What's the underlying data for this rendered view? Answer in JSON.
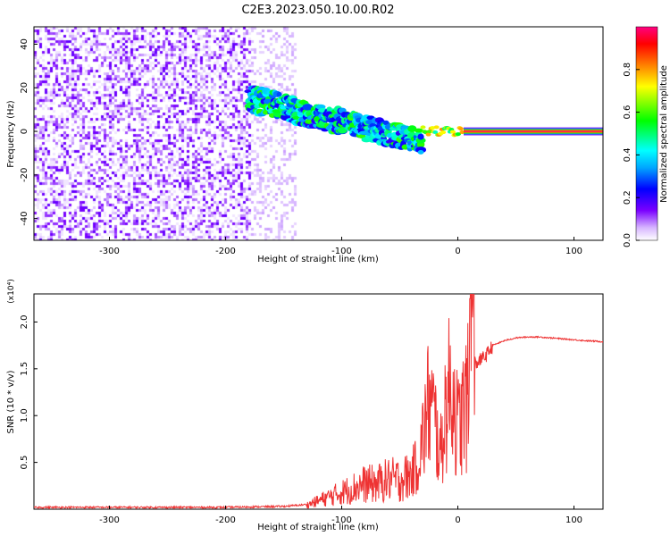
{
  "title": "C2E3.2023.050.10.00.R02",
  "chart_data": [
    {
      "type": "heatmap",
      "title": "C2E3.2023.050.10.00.R02",
      "xlabel": "Height of straight line (km)",
      "ylabel": "Frequency (Hz)",
      "xlim": [
        -365,
        125
      ],
      "ylim": [
        -50,
        48
      ],
      "xticks": [
        -300,
        -200,
        -100,
        0,
        100
      ],
      "yticks": [
        -40,
        -20,
        0,
        20,
        40
      ],
      "colorbar": {
        "label": "Normalized spectral amplitude",
        "range": [
          0,
          1
        ],
        "ticks": [
          0.0,
          0.2,
          0.4,
          0.6,
          0.8
        ],
        "colors": [
          "#ffffff",
          "#d6b4ff",
          "#7a00ff",
          "#0000ff",
          "#00a6ff",
          "#00ffff",
          "#00ff00",
          "#ffff00",
          "#ff8000",
          "#ff0000",
          "#ff0080"
        ]
      },
      "regions": [
        {
          "x": [
            -365,
            -180
          ],
          "freq": [
            -50,
            48
          ],
          "amplitude": 0.08,
          "description_type": "broadband noise"
        },
        {
          "x": [
            -180,
            -140
          ],
          "freq": [
            -50,
            48
          ],
          "amplitude": 0.03,
          "description_type": "sparse noise"
        },
        {
          "x": [
            -180,
            -30
          ],
          "freq_center": [
            15,
            -5
          ],
          "freq_halfwidth": [
            6,
            5
          ],
          "amplitude": 0.4
        },
        {
          "x": [
            -30,
            5
          ],
          "freq_center": [
            0,
            0
          ],
          "freq_halfwidth": [
            2,
            1.5
          ],
          "amplitude": 0.75
        },
        {
          "x": [
            5,
            125
          ],
          "freq_center": [
            0,
            0
          ],
          "freq_halfwidth": [
            1,
            1
          ],
          "amplitude": 0.95
        }
      ],
      "grid": false
    },
    {
      "type": "line",
      "xlabel": "Height of straight line (km)",
      "ylabel": "SNR (10 * v/v)",
      "yscale_label": "(x10⁴)",
      "xlim": [
        -365,
        125
      ],
      "ylim": [
        0,
        2.3
      ],
      "xticks": [
        -300,
        -200,
        -100,
        0,
        100
      ],
      "yticks": [
        0.5,
        1.0,
        1.5,
        2.0
      ],
      "color": "#ee3333",
      "series": [
        {
          "x": [
            -365,
            -300,
            -250,
            -200,
            -150,
            -130,
            -120,
            -110,
            -100,
            -90,
            -80,
            -70,
            -60,
            -50,
            -40,
            -35,
            -30,
            -25,
            -20,
            -15,
            -10,
            -5,
            0,
            5,
            10,
            12,
            15,
            20,
            25,
            30,
            40,
            50,
            60,
            70,
            80,
            90,
            100,
            110,
            125
          ],
          "y": [
            0.02,
            0.02,
            0.02,
            0.02,
            0.03,
            0.05,
            0.1,
            0.15,
            0.2,
            0.25,
            0.3,
            0.3,
            0.35,
            0.35,
            0.4,
            0.5,
            0.8,
            1.2,
            1.0,
            0.6,
            1.2,
            1.4,
            0.9,
            1.1,
            1.3,
            2.25,
            1.55,
            1.6,
            1.65,
            1.75,
            1.8,
            1.83,
            1.84,
            1.84,
            1.83,
            1.82,
            1.81,
            1.8,
            1.79
          ]
        }
      ],
      "grid": false
    }
  ],
  "labels": {
    "heat_x_ticks": [
      "-300",
      "-200",
      "-100",
      "0",
      "100"
    ],
    "heat_y_ticks": [
      "-40",
      "-20",
      "0",
      "20",
      "40"
    ],
    "cbar_ticks": [
      "0.0",
      "0.2",
      "0.4",
      "0.6",
      "0.8"
    ],
    "snr_x_ticks": [
      "-300",
      "-200",
      "-100",
      "0",
      "100"
    ],
    "snr_y_ticks": [
      "0.5",
      "1.0",
      "1.5",
      "2.0"
    ]
  }
}
